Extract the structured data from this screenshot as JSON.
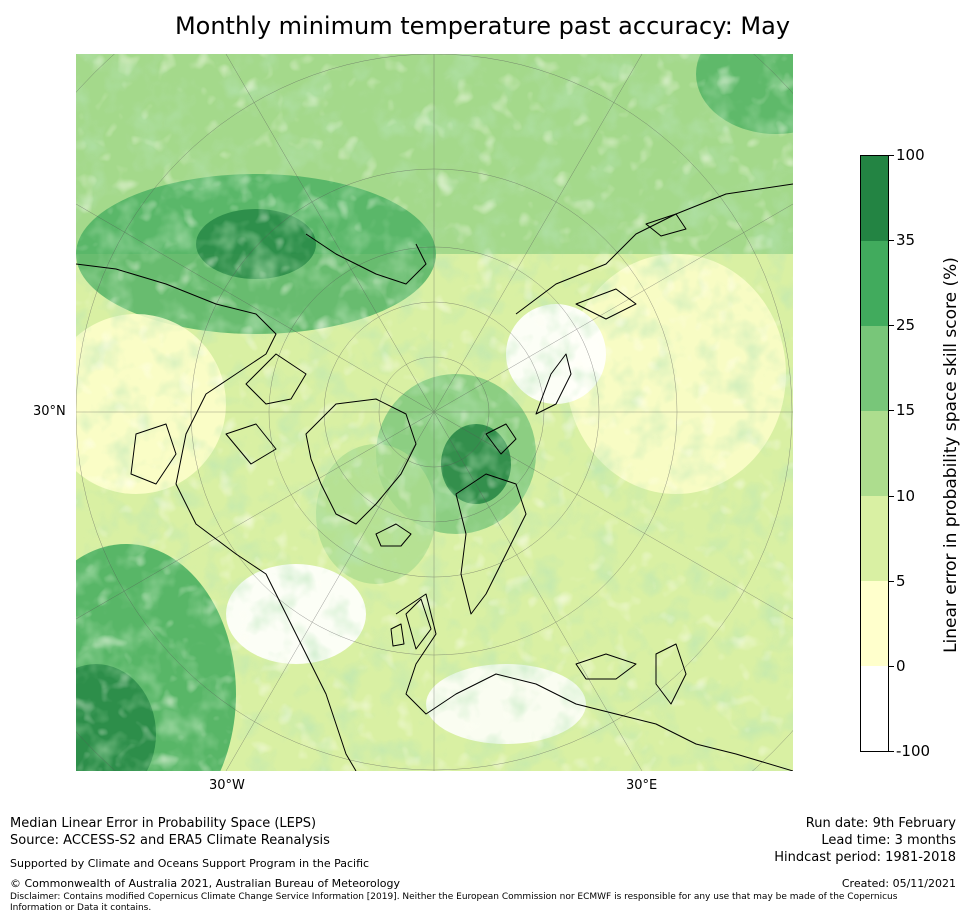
{
  "title": "Monthly minimum temperature past accuracy: May",
  "map": {
    "projection": "north-polar-stereographic",
    "longitude_labels": [
      "30°W",
      "30°E"
    ],
    "latitude_labels": [
      "30°N"
    ]
  },
  "colorbar": {
    "label": "Linear error in probability space skill score (%)",
    "levels": [
      "100",
      "35",
      "25",
      "15",
      "10",
      "5",
      "0",
      "-100"
    ],
    "colors": [
      "#238443",
      "#41ab5d",
      "#78c679",
      "#addd8e",
      "#d9f0a3",
      "#ffffcc",
      "#ffffff"
    ]
  },
  "footer": {
    "left_line1": "Median Linear Error in Probability Space (LEPS)",
    "left_line2": "Source: ACCESS-S2 and ERA5 Climate Reanalysis",
    "supported": "Supported by Climate and Oceans Support Program in the Pacific",
    "copyright": "© Commonwealth of Australia 2021, Australian Bureau of Meteorology",
    "disclaimer_line1": "Disclaimer: Contains modified Copernicus Climate Change Service Information [2019]. Neither the European Commission nor ECMWF is responsible for any use that may be made of the Copernicus",
    "disclaimer_line2": "Information or Data it contains.",
    "run_date": "Run date: 9th February",
    "lead_time": "Lead time: 3 months",
    "hindcast": "Hindcast period: 1981-2018",
    "created": "Created: 05/11/2021"
  }
}
